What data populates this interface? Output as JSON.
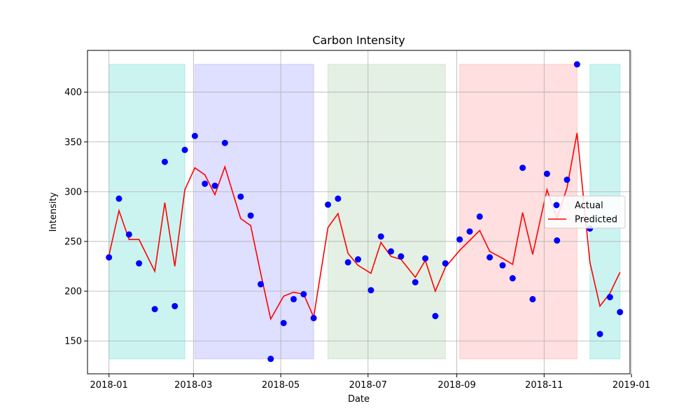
{
  "chart_data": {
    "type": "scatter",
    "title": "Carbon Intensity",
    "xlabel": "Date",
    "ylabel": "Intensity",
    "x_ticks": [
      "2018-01",
      "2018-03",
      "2018-05",
      "2018-07",
      "2018-09",
      "2018-11",
      "2019-01"
    ],
    "y_ticks": [
      150,
      200,
      250,
      300,
      350,
      400
    ],
    "xlim": [
      "2017-12-17",
      "2018-12-31"
    ],
    "ylim": [
      117,
      442
    ],
    "grid": true,
    "legend": {
      "placement": "right",
      "entries": [
        "Actual",
        "Predicted"
      ]
    },
    "dates": [
      "2018-01-01",
      "2018-01-08",
      "2018-01-15",
      "2018-01-22",
      "2018-02-02",
      "2018-02-09",
      "2018-02-16",
      "2018-02-23",
      "2018-03-02",
      "2018-03-09",
      "2018-03-16",
      "2018-03-23",
      "2018-04-03",
      "2018-04-10",
      "2018-04-17",
      "2018-04-24",
      "2018-05-03",
      "2018-05-10",
      "2018-05-17",
      "2018-05-24",
      "2018-06-03",
      "2018-06-10",
      "2018-06-17",
      "2018-06-24",
      "2018-07-03",
      "2018-07-10",
      "2018-07-17",
      "2018-07-24",
      "2018-08-03",
      "2018-08-10",
      "2018-08-17",
      "2018-08-24",
      "2018-09-03",
      "2018-09-10",
      "2018-09-17",
      "2018-09-24",
      "2018-10-03",
      "2018-10-10",
      "2018-10-17",
      "2018-10-24",
      "2018-11-03",
      "2018-11-10",
      "2018-11-17",
      "2018-11-24",
      "2018-12-03",
      "2018-12-10",
      "2018-12-17",
      "2018-12-24"
    ],
    "series": [
      {
        "name": "Actual",
        "kind": "scatter",
        "color": "#0000ff",
        "values": [
          234,
          293,
          257,
          228,
          182,
          330,
          185,
          342,
          356,
          308,
          306,
          349,
          295,
          276,
          207,
          132,
          168,
          192,
          197,
          173,
          287,
          293,
          229,
          232,
          201,
          255,
          240,
          235,
          209,
          233,
          175,
          228,
          252,
          260,
          275,
          234,
          226,
          213,
          324,
          192,
          318,
          251,
          312,
          428,
          263,
          157,
          194,
          179
        ]
      },
      {
        "name": "Predicted",
        "kind": "line",
        "color": "#ff0000",
        "values": [
          236,
          281,
          252,
          252,
          220,
          289,
          225,
          302,
          324,
          317,
          297,
          325,
          273,
          266,
          218,
          172,
          195,
          199,
          197,
          174,
          264,
          278,
          238,
          226,
          218,
          249,
          235,
          232,
          214,
          231,
          200,
          224,
          241,
          251,
          261,
          240,
          233,
          227,
          279,
          237,
          302,
          273,
          304,
          359,
          229,
          185,
          198,
          219
        ]
      }
    ],
    "bands": [
      {
        "start": "2018-01-01",
        "end": "2018-02-23",
        "color": "#40d5cc"
      },
      {
        "start": "2018-03-02",
        "end": "2018-05-24",
        "color": "#8a8aff"
      },
      {
        "start": "2018-06-03",
        "end": "2018-08-24",
        "color": "#9cc89c"
      },
      {
        "start": "2018-09-03",
        "end": "2018-11-24",
        "color": "#ff8a8a"
      },
      {
        "start": "2018-12-03",
        "end": "2018-12-24",
        "color": "#40d5cc"
      }
    ],
    "band_range": [
      132,
      428
    ]
  }
}
